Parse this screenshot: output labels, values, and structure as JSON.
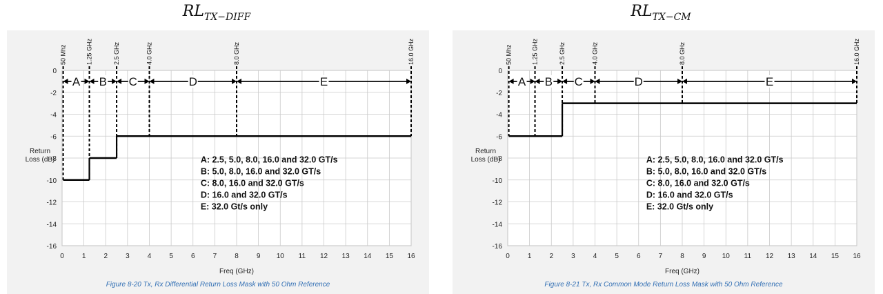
{
  "charts_meta": [
    {
      "title_main": "RL",
      "title_sub": "TX−DIFF"
    },
    {
      "title_main": "RL",
      "title_sub": "TX−CM"
    }
  ],
  "chart_data": [
    {
      "type": "line",
      "title": "RL TX-DIFF",
      "caption": "Figure  8-20  Tx, Rx Differential Return Loss Mask with 50 Ohm Reference",
      "xlabel": "Freq (GHz)",
      "ylabel_lines": [
        "Return",
        "Loss (dB)"
      ],
      "xlim": [
        0,
        16
      ],
      "ylim": [
        -16,
        0
      ],
      "x_ticks": [
        0,
        1,
        2,
        3,
        4,
        5,
        6,
        7,
        8,
        9,
        10,
        11,
        12,
        13,
        14,
        15,
        16
      ],
      "y_ticks": [
        0,
        -2,
        -4,
        -6,
        -8,
        -10,
        -12,
        -14,
        -16
      ],
      "grid": true,
      "freq_markers": [
        {
          "x": 0.05,
          "label": "50 Mhz"
        },
        {
          "x": 1.25,
          "label": "1.25 GHz"
        },
        {
          "x": 2.5,
          "label": "2.5 GHz"
        },
        {
          "x": 4.0,
          "label": "4.0 GHz"
        },
        {
          "x": 8.0,
          "label": "8.0 GHz"
        },
        {
          "x": 16.0,
          "label": "16.0 GHz"
        }
      ],
      "bands": [
        {
          "label": "A",
          "x0": 0.05,
          "x1": 1.25
        },
        {
          "label": "B",
          "x0": 1.25,
          "x1": 2.5
        },
        {
          "label": "C",
          "x0": 2.5,
          "x1": 4.0
        },
        {
          "label": "D",
          "x0": 4.0,
          "x1": 8.0
        },
        {
          "label": "E",
          "x0": 8.0,
          "x1": 16.0
        }
      ],
      "band_arrow_y": -1,
      "mask_segments": [
        {
          "x0": 0.05,
          "x1": 1.25,
          "y": -10
        },
        {
          "x0": 1.25,
          "x1": 2.5,
          "y": -8
        },
        {
          "x0": 2.5,
          "x1": 16.0,
          "y": -6
        }
      ],
      "legend_lines": [
        "A: 2.5, 5.0, 8.0, 16.0 and 32.0 GT/s",
        "B: 5.0, 8.0, 16.0 and 32.0 GT/s",
        "C: 8.0, 16.0 and 32.0 GT/s",
        "D: 16.0 and 32.0 GT/s",
        "E: 32.0 Gt/s only"
      ]
    },
    {
      "type": "line",
      "title": "RL TX-CM",
      "caption": "Figure  8-21  Tx, Rx Common Mode Return Loss Mask with 50 Ohm Reference",
      "xlabel": "Freq (GHz)",
      "ylabel_lines": [
        "Return",
        "Loss (dB)"
      ],
      "xlim": [
        0,
        16
      ],
      "ylim": [
        -16,
        0
      ],
      "x_ticks": [
        0,
        1,
        2,
        3,
        4,
        5,
        6,
        7,
        8,
        9,
        10,
        11,
        12,
        13,
        14,
        15,
        16
      ],
      "y_ticks": [
        0,
        -2,
        -4,
        -6,
        -8,
        -10,
        -12,
        -14,
        -16
      ],
      "grid": true,
      "freq_markers": [
        {
          "x": 0.05,
          "label": "50 Mhz"
        },
        {
          "x": 1.25,
          "label": "1.25 GHz"
        },
        {
          "x": 2.5,
          "label": "2.5 GHz"
        },
        {
          "x": 4.0,
          "label": "4.0 GHz"
        },
        {
          "x": 8.0,
          "label": "8.0 GHz"
        },
        {
          "x": 16.0,
          "label": "16.0 GHz"
        }
      ],
      "bands": [
        {
          "label": "A",
          "x0": 0.05,
          "x1": 1.25
        },
        {
          "label": "B",
          "x0": 1.25,
          "x1": 2.5
        },
        {
          "label": "C",
          "x0": 2.5,
          "x1": 4.0
        },
        {
          "label": "D",
          "x0": 4.0,
          "x1": 8.0
        },
        {
          "label": "E",
          "x0": 8.0,
          "x1": 16.0
        }
      ],
      "band_arrow_y": -1,
      "mask_segments": [
        {
          "x0": 0.05,
          "x1": 2.5,
          "y": -6
        },
        {
          "x0": 2.5,
          "x1": 16.0,
          "y": -3
        }
      ],
      "legend_lines": [
        "A: 2.5, 5.0, 8.0, 16.0 and 32.0 GT/s",
        "B: 5.0, 8.0, 16.0 and 32.0 GT/s",
        "C: 8.0, 16.0 and 32.0 GT/s",
        "D: 16.0 and 32.0 GT/s",
        "E: 32.0 Gt/s only"
      ]
    }
  ]
}
